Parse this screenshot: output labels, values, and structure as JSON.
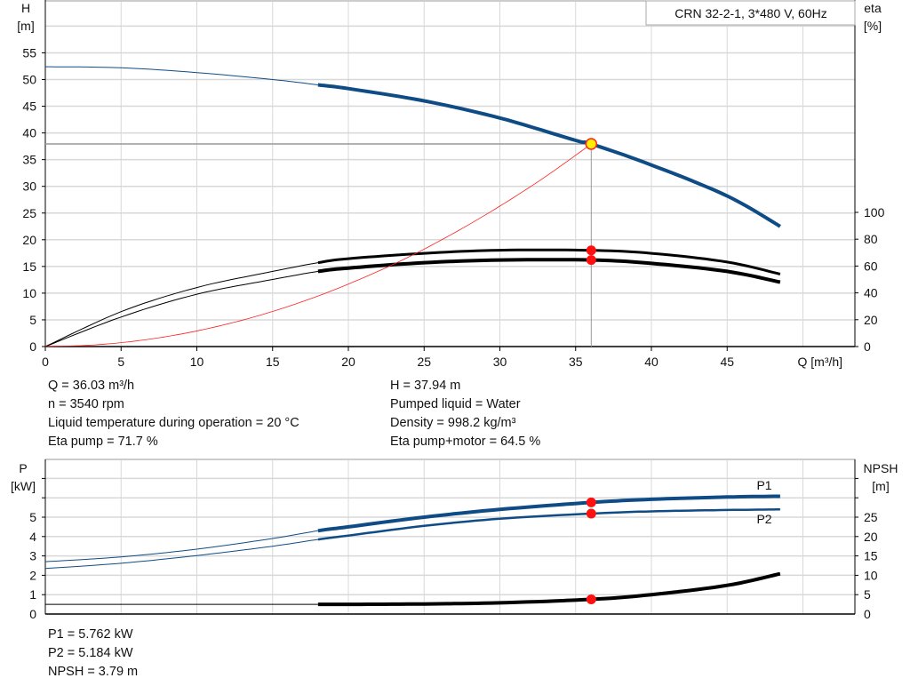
{
  "chart_data": [
    {
      "type": "line",
      "title": "CRN 32-2-1, 3*480 V, 60Hz",
      "xlabel": "Q [m³/h]",
      "ylabel": "H\n[m]",
      "ylabel_lines": [
        "H",
        "[m]"
      ],
      "y2label_lines": [
        "eta",
        "[%]"
      ],
      "xlim": [
        0,
        50
      ],
      "ylim": [
        0,
        60
      ],
      "y2lim": [
        0,
        100
      ],
      "xticks": [
        "0",
        "5",
        "10",
        "15",
        "20",
        "25",
        "30",
        "35",
        "40",
        "45"
      ],
      "yticks": [
        "0",
        "5",
        "10",
        "15",
        "20",
        "25",
        "30",
        "35",
        "40",
        "45",
        "50",
        "55"
      ],
      "y2ticks": [
        "0",
        "20",
        "40",
        "60",
        "80",
        "100"
      ],
      "grid": true,
      "duty_point": {
        "Q": 36.03,
        "H": 37.94,
        "eta_pump": 71.7,
        "eta_total": 64.5
      },
      "series": [
        {
          "key": "H",
          "axis": "left",
          "color": "#0f4c85",
          "x": [
            0,
            5,
            10,
            15,
            18,
            20,
            25,
            30,
            35,
            36.03,
            40,
            45,
            48.5
          ],
          "y": [
            52.4,
            52.2,
            51.3,
            50.0,
            49.0,
            48.3,
            46.0,
            42.8,
            38.6,
            37.94,
            34.0,
            28.2,
            22.5
          ]
        },
        {
          "key": "eta_pump",
          "axis": "right",
          "color": "#000000",
          "x": [
            0,
            5,
            10,
            15,
            18,
            20,
            25,
            30,
            36.03,
            40,
            45,
            48.5
          ],
          "y": [
            0,
            26,
            44,
            56,
            62.5,
            65.5,
            69.5,
            71.8,
            71.7,
            69.5,
            63,
            54
          ]
        },
        {
          "key": "eta_total",
          "axis": "right",
          "color": "#000000",
          "x": [
            0,
            5,
            10,
            15,
            18,
            20,
            25,
            30,
            36.03,
            40,
            45,
            48.5
          ],
          "y": [
            0,
            22,
            39,
            50,
            56,
            58.5,
            62.5,
            64.5,
            64.5,
            62,
            56,
            48
          ]
        },
        {
          "key": "system",
          "axis": "left",
          "color": "#ff2020",
          "x": [
            0,
            3,
            6,
            9,
            12,
            15,
            18,
            21,
            24,
            27,
            30,
            33,
            36.03
          ],
          "y": [
            0,
            0.26,
            1.05,
            2.37,
            4.21,
            6.58,
            9.47,
            12.9,
            16.8,
            21.3,
            26.3,
            31.8,
            37.94
          ]
        }
      ]
    },
    {
      "type": "line",
      "ylabel_lines": [
        "P",
        "[kW]"
      ],
      "y2label_lines": [
        "NPSH",
        "[m]"
      ],
      "xlim": [
        0,
        50
      ],
      "ylim": [
        0,
        8
      ],
      "y2lim": [
        0,
        40
      ],
      "yticks": [
        "0",
        "1",
        "2",
        "3",
        "4",
        "5"
      ],
      "y2ticks": [
        "0",
        "5",
        "10",
        "15",
        "20",
        "25"
      ],
      "grid": true,
      "series": [
        {
          "key": "P1",
          "name": "P1",
          "axis": "left",
          "color": "#0f4c85",
          "x": [
            0,
            5,
            10,
            15,
            18,
            20,
            25,
            30,
            36.03,
            40,
            45,
            48.5
          ],
          "y": [
            2.7,
            2.95,
            3.35,
            3.9,
            4.3,
            4.5,
            5.0,
            5.4,
            5.762,
            5.92,
            6.04,
            6.08
          ]
        },
        {
          "key": "P2",
          "name": "P2",
          "axis": "left",
          "color": "#0f4c85",
          "x": [
            0,
            5,
            10,
            15,
            18,
            20,
            25,
            30,
            36.03,
            40,
            45,
            48.5
          ],
          "y": [
            2.35,
            2.62,
            3.02,
            3.5,
            3.85,
            4.05,
            4.55,
            4.92,
            5.184,
            5.3,
            5.37,
            5.4
          ]
        },
        {
          "key": "NPSH",
          "axis": "right",
          "color": "#000000",
          "x": [
            0,
            15,
            18,
            20,
            25,
            30,
            36.03,
            40,
            45,
            48.5
          ],
          "y": [
            2.5,
            2.5,
            2.5,
            2.5,
            2.6,
            2.9,
            3.79,
            5.0,
            7.4,
            10.4
          ]
        }
      ]
    }
  ],
  "info_top": {
    "left": [
      "Q = 36.03 m³/h",
      "n = 3540 rpm",
      "Liquid temperature during operation = 20 °C",
      "Eta pump = 71.7 %"
    ],
    "right": [
      "H = 37.94 m",
      "Pumped liquid = Water",
      "Density = 998.2 kg/m³",
      "Eta pump+motor = 64.5 %"
    ]
  },
  "info_bottom": [
    "P1 = 5.762 kW",
    "P2 = 5.184 kW",
    "NPSH = 3.79 m"
  ]
}
